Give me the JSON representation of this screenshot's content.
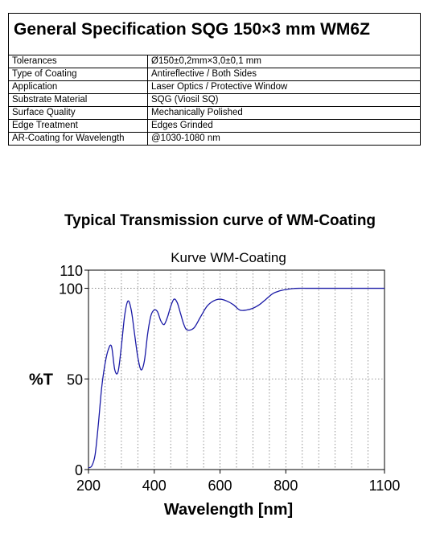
{
  "spec": {
    "title": "General Specification SQG 150×3 mm WM6Z",
    "rows": [
      {
        "label": "Tolerances",
        "value": "Ø150±0,2mm×3,0±0,1 mm"
      },
      {
        "label": "Type of Coating",
        "value": "Antireflective / Both Sides"
      },
      {
        "label": "Application",
        "value": "Laser Optics / Protective Window"
      },
      {
        "label": "Substrate Material",
        "value": "SQG (Viosil SQ)"
      },
      {
        "label": "Surface Quality",
        "value": "Mechanically Polished"
      },
      {
        "label": "Edge Treatment",
        "value": "Edges Grinded"
      },
      {
        "label": "AR-Coating for Wavelength",
        "value": "@1030-1080 nm"
      }
    ]
  },
  "curve_heading": "Typical Transmission curve of WM-Coating",
  "chart_data": {
    "type": "line",
    "title": "Kurve WM-Coating",
    "xlabel": "Wavelength [nm]",
    "ylabel": "%T",
    "xlim": [
      200,
      1100
    ],
    "ylim": [
      0,
      110
    ],
    "x_ticks": [
      200,
      400,
      600,
      800,
      1100
    ],
    "y_ticks": [
      0,
      50,
      100,
      110
    ],
    "grid": true,
    "line_color": "#1a1aa6",
    "series": [
      {
        "x": [
          200,
          210,
          220,
          230,
          240,
          250,
          260,
          270,
          280,
          290,
          300,
          310,
          320,
          330,
          340,
          350,
          360,
          370,
          380,
          390,
          400,
          410,
          420,
          430,
          440,
          450,
          460,
          470,
          480,
          490,
          500,
          520,
          540,
          560,
          580,
          600,
          620,
          640,
          660,
          680,
          700,
          720,
          740,
          760,
          780,
          800,
          820,
          840,
          860,
          880,
          900,
          950,
          1000,
          1050,
          1100
        ],
        "y": [
          1,
          2,
          8,
          25,
          45,
          58,
          66,
          68,
          55,
          54,
          68,
          85,
          93,
          88,
          75,
          62,
          55,
          60,
          75,
          85,
          88,
          87,
          82,
          80,
          84,
          90,
          94,
          92,
          86,
          80,
          77,
          78,
          84,
          90,
          93,
          94,
          93,
          91,
          88,
          88,
          89,
          91,
          94,
          97,
          98.5,
          99.3,
          99.8,
          100,
          100,
          100,
          100,
          100,
          100,
          100,
          100
        ]
      }
    ]
  }
}
